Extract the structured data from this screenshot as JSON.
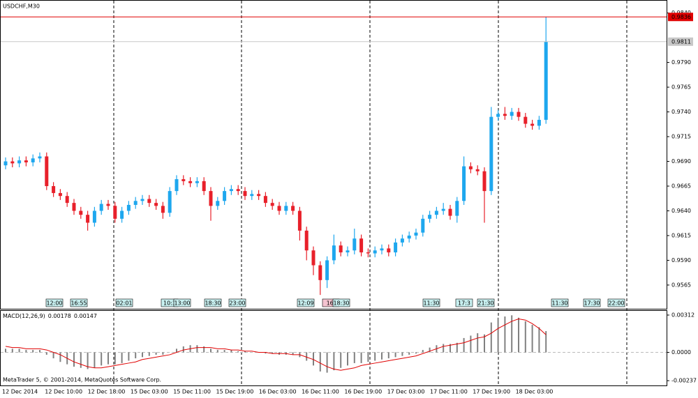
{
  "chart_data": [
    {
      "type": "candlestick",
      "title": "USDCHF,M30",
      "up_color": "#1ea7ee",
      "down_color": "#e8202a",
      "ylim": [
        0.9541,
        0.9851
      ],
      "yticks": [
        {
          "value": 0.984,
          "label": "0.9840"
        },
        {
          "value": 0.979,
          "label": "0.9790"
        },
        0.9765,
        {
          "value": 0.974,
          "label": "0.9740"
        },
        0.9715,
        {
          "value": 0.969,
          "label": "0.9690"
        },
        0.9665,
        {
          "value": 0.964,
          "label": "0.9640"
        },
        0.9615,
        {
          "value": 0.959,
          "label": "0.9590"
        },
        0.9565
      ],
      "price_lines": [
        {
          "value": 0.9836,
          "color": "#e00000"
        },
        {
          "value": 0.9811,
          "color": "#c8c8c8"
        }
      ],
      "open": [
        0.9686,
        0.969,
        0.9688,
        0.9691,
        0.9689,
        0.9693,
        0.9695,
        0.9665,
        0.9658,
        0.9655,
        0.9648,
        0.964,
        0.9636,
        0.9628,
        0.964,
        0.9647,
        0.9645,
        0.9632,
        0.964,
        0.9646,
        0.965,
        0.9652,
        0.9648,
        0.9645,
        0.9638,
        0.966,
        0.9672,
        0.967,
        0.9668,
        0.967,
        0.966,
        0.9645,
        0.965,
        0.966,
        0.9662,
        0.966,
        0.9655,
        0.9657,
        0.9655,
        0.9648,
        0.9645,
        0.964,
        0.9645,
        0.964,
        0.962,
        0.96,
        0.9585,
        0.957,
        0.959,
        0.9605,
        0.9598,
        0.96,
        0.9612,
        0.9598,
        0.9597,
        0.96,
        0.9602,
        0.9598,
        0.9608,
        0.9612,
        0.9615,
        0.9618,
        0.9632,
        0.9636,
        0.964,
        0.9642,
        0.9635,
        0.965,
        0.9685,
        0.9682,
        0.968,
        0.966,
        0.9735,
        0.9738,
        0.9736,
        0.974,
        0.9735,
        0.9728,
        0.9726,
        0.9732
      ],
      "high": [
        0.9694,
        0.9694,
        0.9695,
        0.9695,
        0.9697,
        0.9699,
        0.9699,
        0.9669,
        0.9662,
        0.9659,
        0.9652,
        0.9644,
        0.964,
        0.9644,
        0.9651,
        0.9651,
        0.9649,
        0.9644,
        0.965,
        0.9654,
        0.9656,
        0.9656,
        0.9652,
        0.9649,
        0.9664,
        0.9676,
        0.9676,
        0.9674,
        0.9674,
        0.9674,
        0.9664,
        0.9654,
        0.9664,
        0.9666,
        0.9666,
        0.9664,
        0.9661,
        0.9661,
        0.9659,
        0.9652,
        0.9649,
        0.9649,
        0.9649,
        0.9644,
        0.9624,
        0.9604,
        0.9589,
        0.9594,
        0.9616,
        0.9609,
        0.9604,
        0.9622,
        0.9616,
        0.9602,
        0.9604,
        0.9606,
        0.9606,
        0.9612,
        0.9616,
        0.9619,
        0.9622,
        0.9636,
        0.964,
        0.9644,
        0.9648,
        0.9646,
        0.9654,
        0.9695,
        0.9689,
        0.9686,
        0.9684,
        0.9745,
        0.9742,
        0.9745,
        0.9744,
        0.9744,
        0.9739,
        0.9732,
        0.9736,
        0.9836
      ],
      "low": [
        0.9682,
        0.9684,
        0.9684,
        0.9685,
        0.9685,
        0.9689,
        0.9661,
        0.9654,
        0.9651,
        0.9644,
        0.9636,
        0.9632,
        0.962,
        0.9624,
        0.9636,
        0.9641,
        0.9628,
        0.9628,
        0.9636,
        0.9642,
        0.9646,
        0.9644,
        0.9641,
        0.9632,
        0.9634,
        0.9656,
        0.9666,
        0.9664,
        0.9664,
        0.9656,
        0.963,
        0.9641,
        0.9646,
        0.9656,
        0.9656,
        0.9651,
        0.9651,
        0.9651,
        0.9644,
        0.9641,
        0.9636,
        0.9636,
        0.9636,
        0.961,
        0.959,
        0.9575,
        0.9555,
        0.9562,
        0.9586,
        0.9594,
        0.9594,
        0.9596,
        0.9594,
        0.9593,
        0.9593,
        0.9596,
        0.9594,
        0.9594,
        0.9604,
        0.9608,
        0.9611,
        0.9614,
        0.9628,
        0.9632,
        0.9636,
        0.9631,
        0.9628,
        0.9646,
        0.9678,
        0.9676,
        0.9628,
        0.9656,
        0.9731,
        0.9732,
        0.9732,
        0.9731,
        0.9724,
        0.9722,
        0.9722,
        0.9728
      ],
      "close": [
        0.969,
        0.9688,
        0.9691,
        0.9689,
        0.9693,
        0.9695,
        0.9665,
        0.9658,
        0.9655,
        0.9648,
        0.964,
        0.9636,
        0.9628,
        0.964,
        0.9647,
        0.9645,
        0.9632,
        0.964,
        0.9646,
        0.965,
        0.9652,
        0.9648,
        0.9645,
        0.9638,
        0.966,
        0.9672,
        0.967,
        0.9668,
        0.967,
        0.966,
        0.9645,
        0.965,
        0.966,
        0.9662,
        0.966,
        0.9655,
        0.9657,
        0.9655,
        0.9648,
        0.9645,
        0.964,
        0.9645,
        0.964,
        0.962,
        0.96,
        0.9585,
        0.957,
        0.959,
        0.9605,
        0.9598,
        0.96,
        0.9612,
        0.9598,
        0.9597,
        0.96,
        0.9602,
        0.9598,
        0.9608,
        0.9612,
        0.9615,
        0.9618,
        0.9632,
        0.9636,
        0.964,
        0.9642,
        0.9635,
        0.965,
        0.9685,
        0.9682,
        0.968,
        0.966,
        0.9735,
        0.9738,
        0.9736,
        0.974,
        0.9735,
        0.9728,
        0.9726,
        0.9732,
        0.9811
      ],
      "events": [
        "12:00",
        "16:55",
        "02:01",
        "10:3",
        "13:00",
        "18:30",
        "23:00",
        "12:09",
        "16:",
        "18:30",
        "11:30",
        "17:3",
        "21:30",
        "11:30",
        "17:30",
        "22:00"
      ]
    },
    {
      "type": "macd",
      "title": "MACD(12,26,9)",
      "ylim": [
        -0.00277,
        0.00347
      ],
      "yticks": [
        0.00312,
        {
          "value": 0,
          "label": "0.0000"
        },
        -0.00237
      ],
      "series": [
        {
          "name": "histogram",
          "color": "#808080",
          "values": [
            0.0003,
            0.0003,
            0.0003,
            0.0002,
            0.0002,
            0.0002,
            -0.0002,
            -0.0005,
            -0.0008,
            -0.001,
            -0.0012,
            -0.0013,
            -0.0014,
            -0.0013,
            -0.0011,
            -0.001,
            -0.001,
            -0.0009,
            -0.0007,
            -0.0005,
            -0.0004,
            -0.0003,
            -0.0002,
            -0.0002,
            0.0,
            0.0003,
            0.0005,
            0.0006,
            0.0006,
            0.0005,
            0.0003,
            0.0002,
            0.0002,
            0.0002,
            0.0001,
            0.0001,
            0.0,
            0.0,
            -0.0001,
            -0.0001,
            -0.0002,
            -0.0002,
            -0.0002,
            -0.0004,
            -0.0007,
            -0.0011,
            -0.0016,
            -0.0017,
            -0.0015,
            -0.0013,
            -0.0011,
            -0.0009,
            -0.0009,
            -0.0008,
            -0.0007,
            -0.0006,
            -0.0005,
            -0.0004,
            -0.0003,
            -0.0002,
            -0.0001,
            0.0002,
            0.0004,
            0.0006,
            0.0007,
            0.0007,
            0.0008,
            0.0012,
            0.0014,
            0.0016,
            0.0015,
            0.0025,
            0.0029,
            0.003,
            0.0031,
            0.0029,
            0.0026,
            0.0023,
            0.0021,
            0.00178
          ]
        },
        {
          "name": "signal",
          "color": "#e00000",
          "values": [
            0.0005,
            0.0004,
            0.0004,
            0.0003,
            0.0003,
            0.0003,
            0.0002,
            0.0,
            -0.0002,
            -0.0005,
            -0.0008,
            -0.001,
            -0.0012,
            -0.0013,
            -0.0013,
            -0.0012,
            -0.0011,
            -0.001,
            -0.0009,
            -0.0008,
            -0.0006,
            -0.0005,
            -0.0004,
            -0.0003,
            -0.0002,
            0.0,
            0.0002,
            0.0003,
            0.0004,
            0.0004,
            0.0004,
            0.0003,
            0.0003,
            0.0002,
            0.0002,
            0.0001,
            0.0001,
            0.0,
            0.0,
            -0.0001,
            -0.0001,
            -0.0001,
            -0.0002,
            -0.0002,
            -0.0004,
            -0.0006,
            -0.0009,
            -0.0012,
            -0.0014,
            -0.0015,
            -0.0014,
            -0.0013,
            -0.0011,
            -0.001,
            -0.0009,
            -0.0008,
            -0.0007,
            -0.0006,
            -0.0005,
            -0.0004,
            -0.0003,
            -0.0001,
            0.0001,
            0.0003,
            0.0005,
            0.0006,
            0.0007,
            0.0008,
            0.001,
            0.0012,
            0.0013,
            0.0016,
            0.002,
            0.0023,
            0.0026,
            0.0028,
            0.0027,
            0.0024,
            0.002,
            0.00147
          ]
        }
      ],
      "x_labels": [
        "12 Dec 2014",
        "12 Dec 10:00",
        "12 Dec 18:00",
        "15 Dec 03:00",
        "15 Dec 11:00",
        "15 Dec 19:00",
        "16 Dec 03:00",
        "16 Dec 11:00",
        "16 Dec 19:00",
        "17 Dec 03:00",
        "17 Dec 11:00",
        "17 Dec 19:00",
        "18 Dec 03:00"
      ]
    }
  ],
  "footer": "MetaTrader 5, © 2001-2014, MetaQuotes Software Corp."
}
